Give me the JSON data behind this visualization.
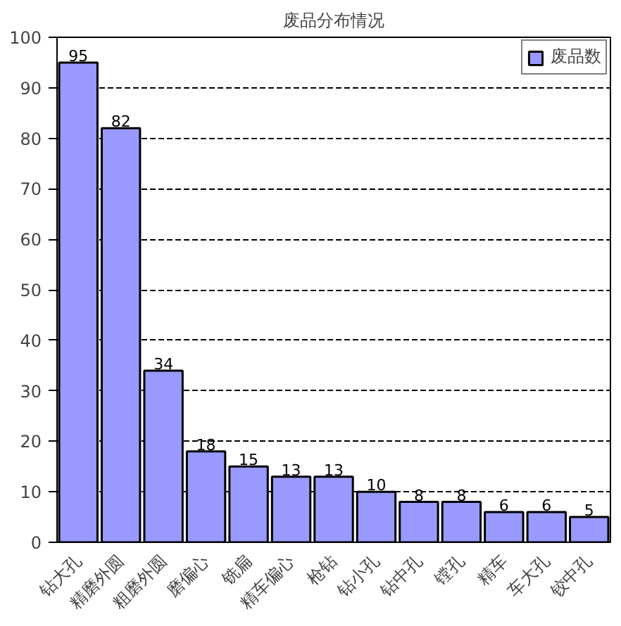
{
  "chart_data": {
    "type": "bar",
    "title": "废品分布情况",
    "categories": [
      "钻大孔",
      "精磨外圆",
      "粗磨外圆",
      "磨偏心",
      "铣扁",
      "精车偏心",
      "枪钻",
      "钻小孔",
      "钻中孔",
      "镗孔",
      "精车",
      "车大孔",
      "铰中孔"
    ],
    "series": [
      {
        "name": "废品数",
        "color": "#9999ff",
        "values": [
          95,
          82,
          34,
          18,
          15,
          13,
          13,
          10,
          8,
          8,
          6,
          6,
          5
        ]
      }
    ],
    "ylim": [
      0,
      100
    ],
    "yticks": [
      0,
      10,
      20,
      30,
      40,
      50,
      60,
      70,
      80,
      90,
      100
    ],
    "grid": "y",
    "legend": "top right",
    "data_labels": true
  }
}
